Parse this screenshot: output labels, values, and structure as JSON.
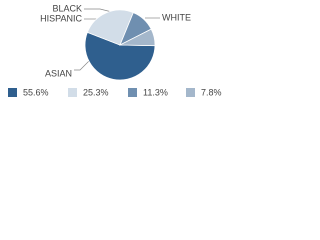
{
  "chart_data": {
    "type": "pie",
    "categories": [
      "ASIAN",
      "WHITE",
      "HISPANIC",
      "BLACK"
    ],
    "values": [
      55.6,
      25.3,
      11.3,
      7.8
    ],
    "value_labels": [
      "55.6%",
      "25.3%",
      "11.3%",
      "7.8%"
    ],
    "colors": [
      "#2f5f8e",
      "#d2dde8",
      "#6f8fb0",
      "#a4b7cb"
    ]
  }
}
